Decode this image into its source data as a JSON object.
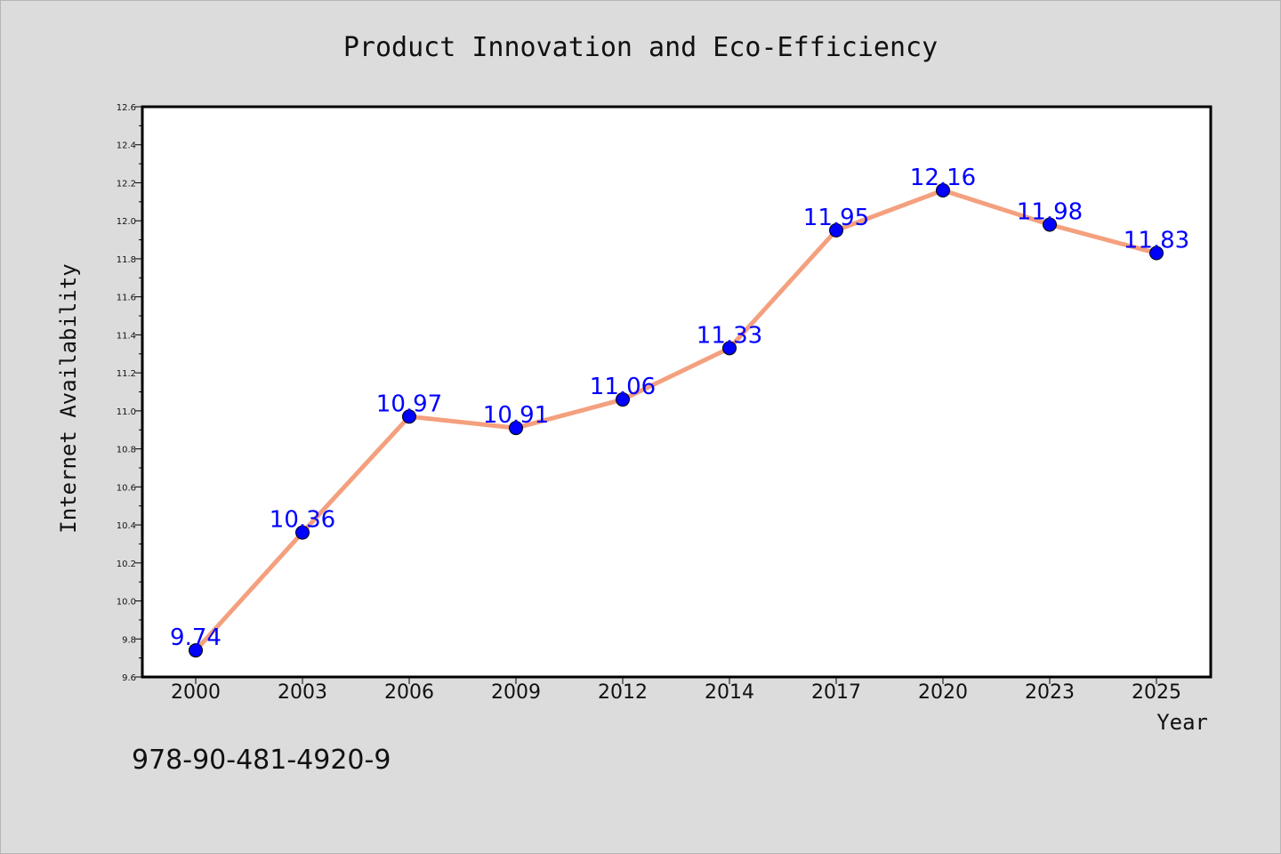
{
  "chart_data": {
    "type": "line",
    "title": "Product Innovation and Eco-Efficiency",
    "xlabel": "Year",
    "ylabel": "Internet Availability",
    "categories": [
      "2000",
      "2003",
      "2006",
      "2009",
      "2012",
      "2014",
      "2017",
      "2020",
      "2023",
      "2025"
    ],
    "values": [
      9.74,
      10.36,
      10.97,
      10.91,
      11.06,
      11.33,
      11.95,
      12.16,
      11.98,
      11.83
    ],
    "data_labels": [
      "9.74",
      "10.36",
      "10.97",
      "10.91",
      "11.06",
      "11.33",
      "11.95",
      "12.16",
      "11.98",
      "11.83"
    ],
    "ylim": [
      9.6,
      12.6
    ],
    "yticks": [
      "9.6",
      "9.8",
      "10.0",
      "10.2",
      "10.4",
      "10.6",
      "10.8",
      "11.0",
      "11.2",
      "11.4",
      "11.6",
      "11.8",
      "12.0",
      "12.2",
      "12.4",
      "12.6"
    ],
    "grid": false,
    "legend": "none",
    "colors": {
      "line": "#f4a07e",
      "marker": "#0000ff",
      "data_label": "#0000ff",
      "plot_background": "#ffffff",
      "figure_background": "#dcdcdc"
    }
  },
  "annotation": "978-90-481-4920-9"
}
